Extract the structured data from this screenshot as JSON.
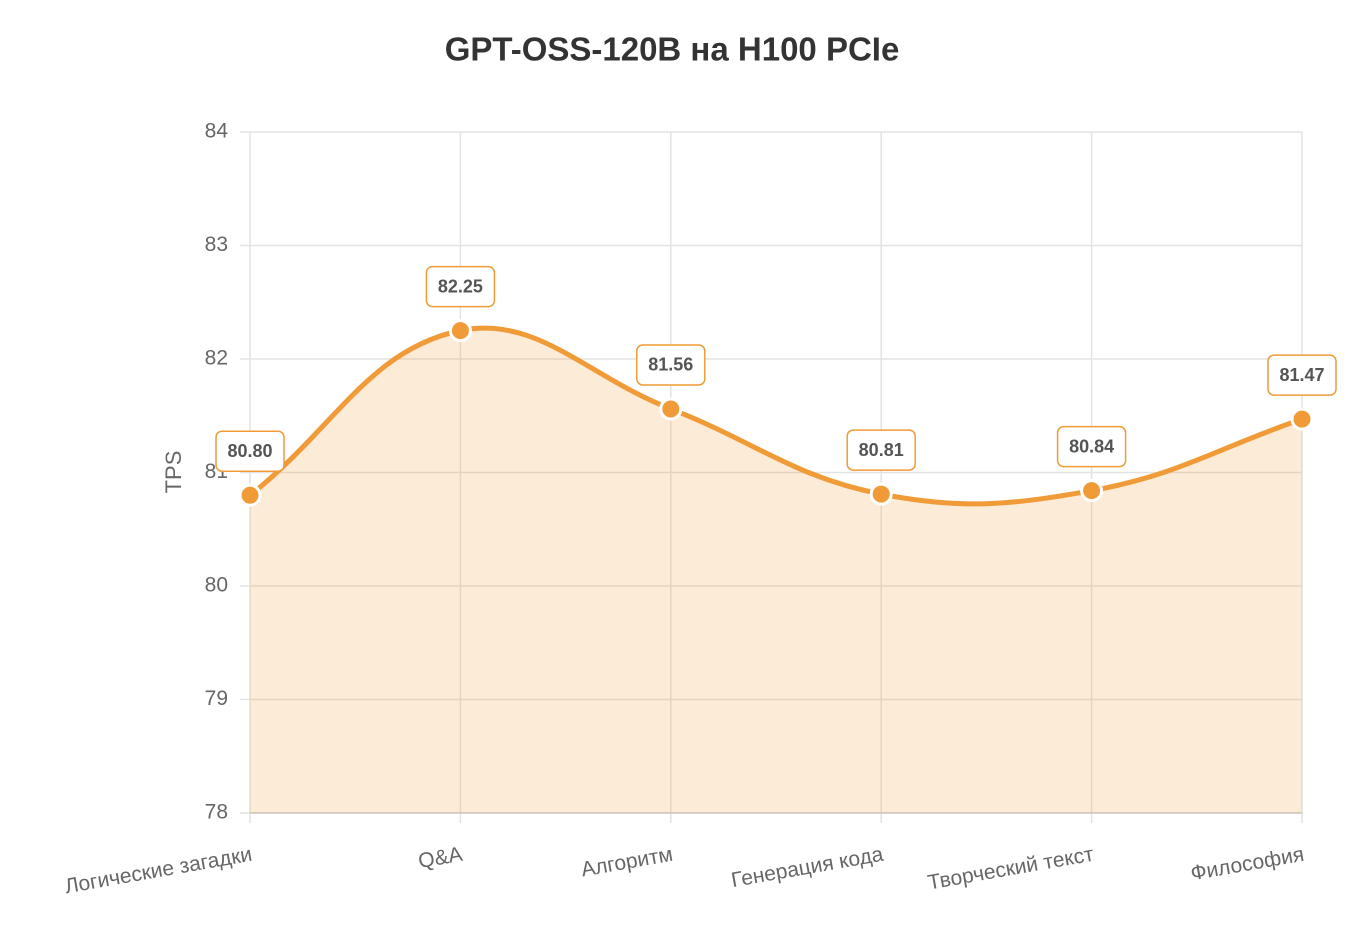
{
  "chart_data": {
    "type": "line",
    "title": "GPT-OSS-120B на H100 PCIe",
    "y_label": "TPS",
    "categories": [
      "Логические загадки",
      "Q&A",
      "Алгоритм",
      "Генерация кода",
      "Творческий текст",
      "Философия"
    ],
    "values": [
      80.8,
      82.25,
      81.56,
      80.81,
      80.84,
      81.47
    ],
    "value_labels": [
      "80.80",
      "82.25",
      "81.56",
      "80.81",
      "80.84",
      "81.47"
    ],
    "color": "#f09b37",
    "fill": true,
    "ylim": [
      78,
      84
    ],
    "yticks": [
      78,
      79,
      80,
      81,
      82,
      83,
      84
    ],
    "grid": true
  }
}
